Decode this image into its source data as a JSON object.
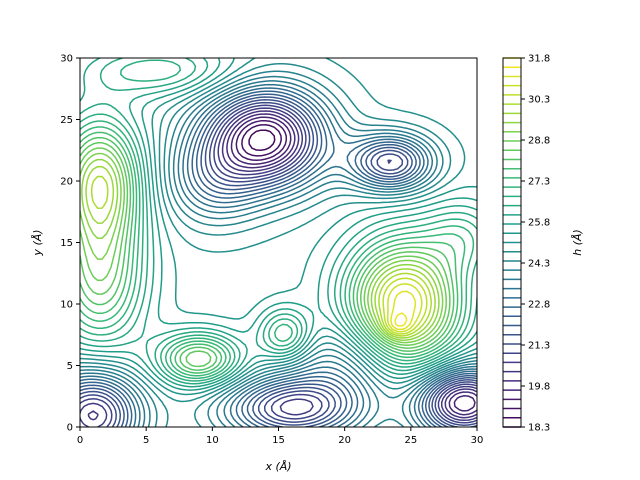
{
  "chart_data": {
    "type": "contour",
    "xlabel": "x (Å)",
    "ylabel": "y (Å)",
    "xlim": [
      0,
      30
    ],
    "ylim": [
      0,
      30
    ],
    "xticks": [
      "0",
      "5",
      "10",
      "15",
      "20",
      "25",
      "30"
    ],
    "yticks": [
      "0",
      "5",
      "10",
      "15",
      "20",
      "25",
      "30"
    ],
    "colorbar": {
      "label": "h (Å)",
      "min": 18.3,
      "max": 31.8,
      "colormap": "viridis",
      "ticks": [
        "18.3",
        "19.8",
        "21.3",
        "22.8",
        "24.3",
        "25.8",
        "27.3",
        "28.8",
        "30.3",
        "31.8"
      ]
    },
    "field": {
      "base": 25.2,
      "features": [
        {
          "x": 14,
          "y": 23.5,
          "amp": -6.6,
          "sx": 3.2,
          "sy": 2.8
        },
        {
          "x": 23.5,
          "y": 21.5,
          "amp": -4.2,
          "sx": 2.2,
          "sy": 1.6
        },
        {
          "x": 29,
          "y": 2,
          "amp": -6.0,
          "sx": 2.5,
          "sy": 2.0
        },
        {
          "x": 1,
          "y": 1,
          "amp": -5.0,
          "sx": 2.5,
          "sy": 2.5
        },
        {
          "x": 16,
          "y": 1.5,
          "amp": -4.5,
          "sx": 3.5,
          "sy": 1.8
        },
        {
          "x": 24.5,
          "y": 10,
          "amp": 6.2,
          "sx": 3.0,
          "sy": 3.6
        },
        {
          "x": 24,
          "y": 8.2,
          "amp": 1.2,
          "sx": 0.8,
          "sy": 0.7
        },
        {
          "x": 9,
          "y": 5.5,
          "amp": 3.6,
          "sx": 2.2,
          "sy": 1.5
        },
        {
          "x": 15.5,
          "y": 7.5,
          "amp": 2.4,
          "sx": 1.4,
          "sy": 1.5
        },
        {
          "x": 1.5,
          "y": 20,
          "amp": 4.6,
          "sx": 2.2,
          "sy": 3.6
        },
        {
          "x": 1.5,
          "y": 12,
          "amp": 3.2,
          "sx": 2.4,
          "sy": 4.0
        },
        {
          "x": 10,
          "y": 20,
          "amp": -2.0,
          "sx": 2.5,
          "sy": 2.5
        },
        {
          "x": 20,
          "y": 5,
          "amp": -1.8,
          "sx": 3.0,
          "sy": 2.5
        },
        {
          "x": 6,
          "y": 29,
          "amp": 1.8,
          "sx": 4.0,
          "sy": 1.5
        },
        {
          "x": 29,
          "y": 15.5,
          "amp": 1.5,
          "sx": 2.0,
          "sy": 2.0
        }
      ]
    }
  }
}
